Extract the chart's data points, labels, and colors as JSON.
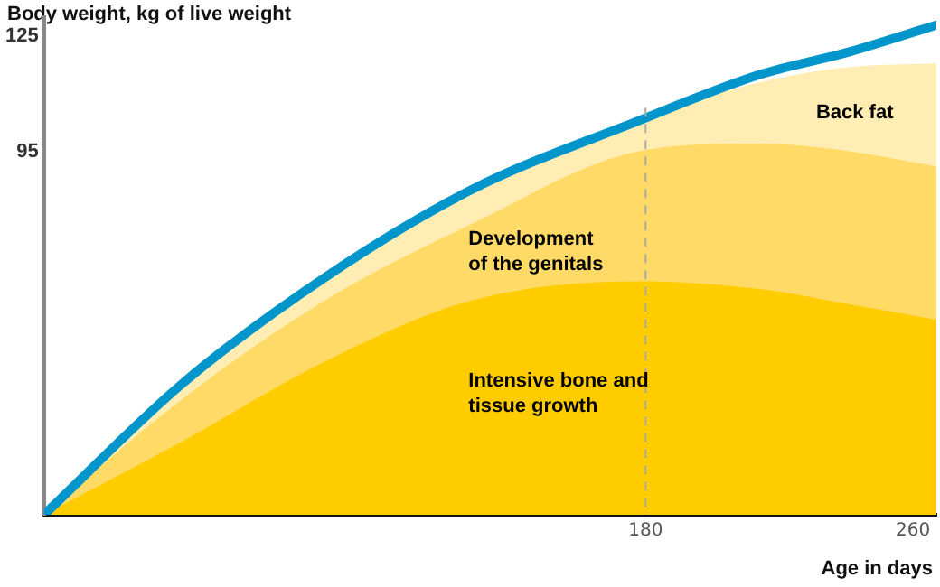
{
  "chart_data": {
    "type": "area",
    "ylabel": "Body weight, kg of live weight",
    "xlabel": "Age in days",
    "x": [
      0,
      41,
      84,
      128,
      178,
      214,
      241,
      267
    ],
    "series": [
      {
        "name": "Back fat",
        "color": "#ffedb3",
        "values": [
          0,
          34,
          62,
          85,
          103,
          113,
          117,
          118
        ]
      },
      {
        "name": "Development\nof the genitals",
        "color": "#ffda66",
        "values": [
          0,
          30,
          56,
          76,
          95,
          97,
          95,
          91
        ]
      },
      {
        "name": "Intensive bone and\ntissue growth",
        "color": "#ffcc00",
        "values": [
          0,
          19,
          40,
          56,
          61,
          59,
          55,
          51
        ]
      },
      {
        "type": "line",
        "color": "#0096cc",
        "values": [
          0,
          34,
          62,
          85,
          103,
          115,
          121,
          128
        ]
      }
    ],
    "xlim": [
      0,
      267
    ],
    "ylim": [
      0,
      130
    ],
    "xticks": [
      180,
      260
    ],
    "yticks": [
      95,
      125
    ],
    "ref_lines": [
      {
        "axis": "x",
        "value": 180,
        "color": "#aaaaaa",
        "line_style": "dashed"
      }
    ],
    "grid": false,
    "legend": false,
    "marker": "none"
  }
}
